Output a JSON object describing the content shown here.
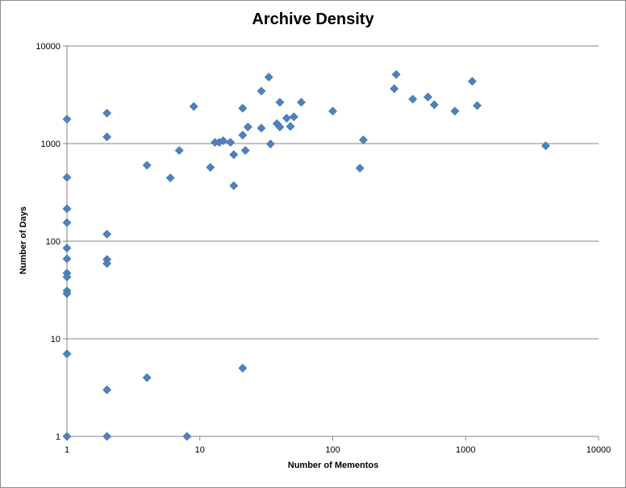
{
  "chart_data": {
    "type": "scatter",
    "title": "Archive Density",
    "xlabel": "Number of Mementos",
    "ylabel": "Number of Days",
    "x_scale": "log",
    "y_scale": "log",
    "xlim": [
      1,
      10000
    ],
    "ylim": [
      1,
      10000
    ],
    "x_ticks": [
      "1",
      "10",
      "100",
      "1000",
      "10000"
    ],
    "y_ticks": [
      "1",
      "10",
      "100",
      "1000",
      "10000"
    ],
    "grid": "horizontal major gridlines",
    "marker_color": "#4f81bd",
    "points": [
      [
        1,
        1780
      ],
      [
        1,
        450
      ],
      [
        1,
        215
      ],
      [
        1,
        155
      ],
      [
        1,
        85
      ],
      [
        1,
        66
      ],
      [
        1,
        47
      ],
      [
        1,
        43
      ],
      [
        1,
        31
      ],
      [
        1,
        29
      ],
      [
        1,
        7
      ],
      [
        1,
        1
      ],
      [
        2,
        2050
      ],
      [
        2,
        1170
      ],
      [
        2,
        118
      ],
      [
        2,
        65
      ],
      [
        2,
        59
      ],
      [
        2,
        3
      ],
      [
        2,
        1
      ],
      [
        4,
        600
      ],
      [
        4,
        4
      ],
      [
        6,
        445
      ],
      [
        7,
        850
      ],
      [
        8,
        1
      ],
      [
        9,
        2400
      ],
      [
        12,
        570
      ],
      [
        13,
        1030
      ],
      [
        14,
        1030
      ],
      [
        15,
        1070
      ],
      [
        17,
        1030
      ],
      [
        18,
        770
      ],
      [
        18,
        370
      ],
      [
        21,
        2300
      ],
      [
        21,
        1220
      ],
      [
        21,
        5
      ],
      [
        22,
        850
      ],
      [
        23,
        1480
      ],
      [
        29,
        3450
      ],
      [
        29,
        1440
      ],
      [
        33,
        4800
      ],
      [
        34,
        990
      ],
      [
        38,
        1600
      ],
      [
        40,
        1480
      ],
      [
        40,
        2650
      ],
      [
        45,
        1820
      ],
      [
        48,
        1500
      ],
      [
        51,
        1880
      ],
      [
        58,
        2650
      ],
      [
        100,
        2150
      ],
      [
        160,
        560
      ],
      [
        170,
        1090
      ],
      [
        290,
        3650
      ],
      [
        300,
        5100
      ],
      [
        400,
        2850
      ],
      [
        520,
        3000
      ],
      [
        580,
        2500
      ],
      [
        830,
        2150
      ],
      [
        1120,
        4350
      ],
      [
        1220,
        2450
      ],
      [
        4000,
        950
      ]
    ]
  }
}
